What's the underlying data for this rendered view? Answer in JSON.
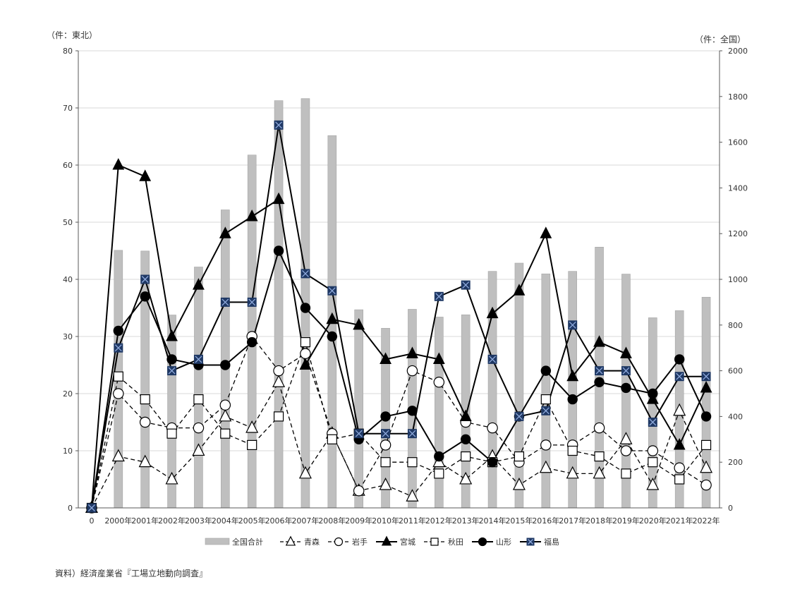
{
  "chart_data": {
    "type": "bar+line",
    "left_axis_unit": "（件：東北）",
    "right_axis_unit": "（件：全国）",
    "left_ylim": [
      0,
      80
    ],
    "left_ticks": [
      "0",
      "10",
      "20",
      "30",
      "40",
      "50",
      "60",
      "70",
      "80"
    ],
    "right_ylim": [
      0,
      2000
    ],
    "right_ticks": [
      "0",
      "200",
      "400",
      "600",
      "800",
      "1000",
      "1200",
      "1400",
      "1600",
      "1800",
      "2000"
    ],
    "categories": [
      "0",
      "2000年",
      "2001年",
      "2002年",
      "2003年",
      "2004年",
      "2005年",
      "2006年",
      "2007年",
      "2008年",
      "2009年",
      "2010年",
      "2011年",
      "2012年",
      "2013年",
      "2014年",
      "2015年",
      "2016年",
      "2017年",
      "2018年",
      "2019年",
      "2020年",
      "2021年",
      "2022年"
    ],
    "bar_series": {
      "name": "全国合計",
      "color": "#bfbfbf",
      "values": [
        null,
        1127,
        1124,
        844,
        1054,
        1304,
        1544,
        1782,
        1791,
        1629,
        867,
        786,
        869,
        835,
        845,
        1035,
        1071,
        1024,
        1035,
        1141,
        1023,
        832,
        863,
        922
      ]
    },
    "line_series": [
      {
        "name": "青森",
        "marker": "triangle-open",
        "dashed": true,
        "values": [
          0,
          9,
          8,
          5,
          10,
          16,
          14,
          22,
          6,
          13,
          3,
          4,
          2,
          8,
          5,
          9,
          4,
          7,
          6,
          6,
          12,
          4,
          17,
          7
        ]
      },
      {
        "name": "岩手",
        "marker": "circle-open",
        "dashed": true,
        "values": [
          0,
          20,
          15,
          14,
          14,
          18,
          30,
          24,
          27,
          13,
          3,
          11,
          24,
          22,
          15,
          14,
          8,
          11,
          11,
          14,
          10,
          10,
          7,
          4
        ]
      },
      {
        "name": "宮城",
        "marker": "triangle-filled",
        "dashed": false,
        "values": [
          0,
          60,
          58,
          30,
          39,
          48,
          51,
          54,
          25,
          33,
          32,
          26,
          27,
          26,
          16,
          34,
          38,
          48,
          23,
          29,
          27,
          19,
          11,
          21
        ]
      },
      {
        "name": "秋田",
        "marker": "square-open",
        "dashed": true,
        "values": [
          0,
          23,
          19,
          13,
          19,
          13,
          11,
          16,
          29,
          12,
          13,
          8,
          8,
          6,
          9,
          8,
          9,
          19,
          10,
          9,
          6,
          8,
          5,
          11
        ]
      },
      {
        "name": "山形",
        "marker": "circle-filled",
        "dashed": false,
        "values": [
          0,
          31,
          37,
          26,
          25,
          25,
          29,
          45,
          35,
          30,
          12,
          16,
          17,
          9,
          12,
          8,
          16,
          24,
          19,
          22,
          21,
          20,
          26,
          16
        ]
      },
      {
        "name": "福島",
        "marker": "square-x",
        "dashed": false,
        "values": [
          0,
          28,
          40,
          24,
          26,
          36,
          36,
          67,
          41,
          38,
          13,
          13,
          13,
          37,
          39,
          26,
          16,
          17,
          32,
          24,
          24,
          15,
          23,
          23
        ]
      }
    ],
    "grid": "horizontal",
    "legend_position": "bottom"
  },
  "source_note": "資料）経済産業省『工場立地動向調査』"
}
